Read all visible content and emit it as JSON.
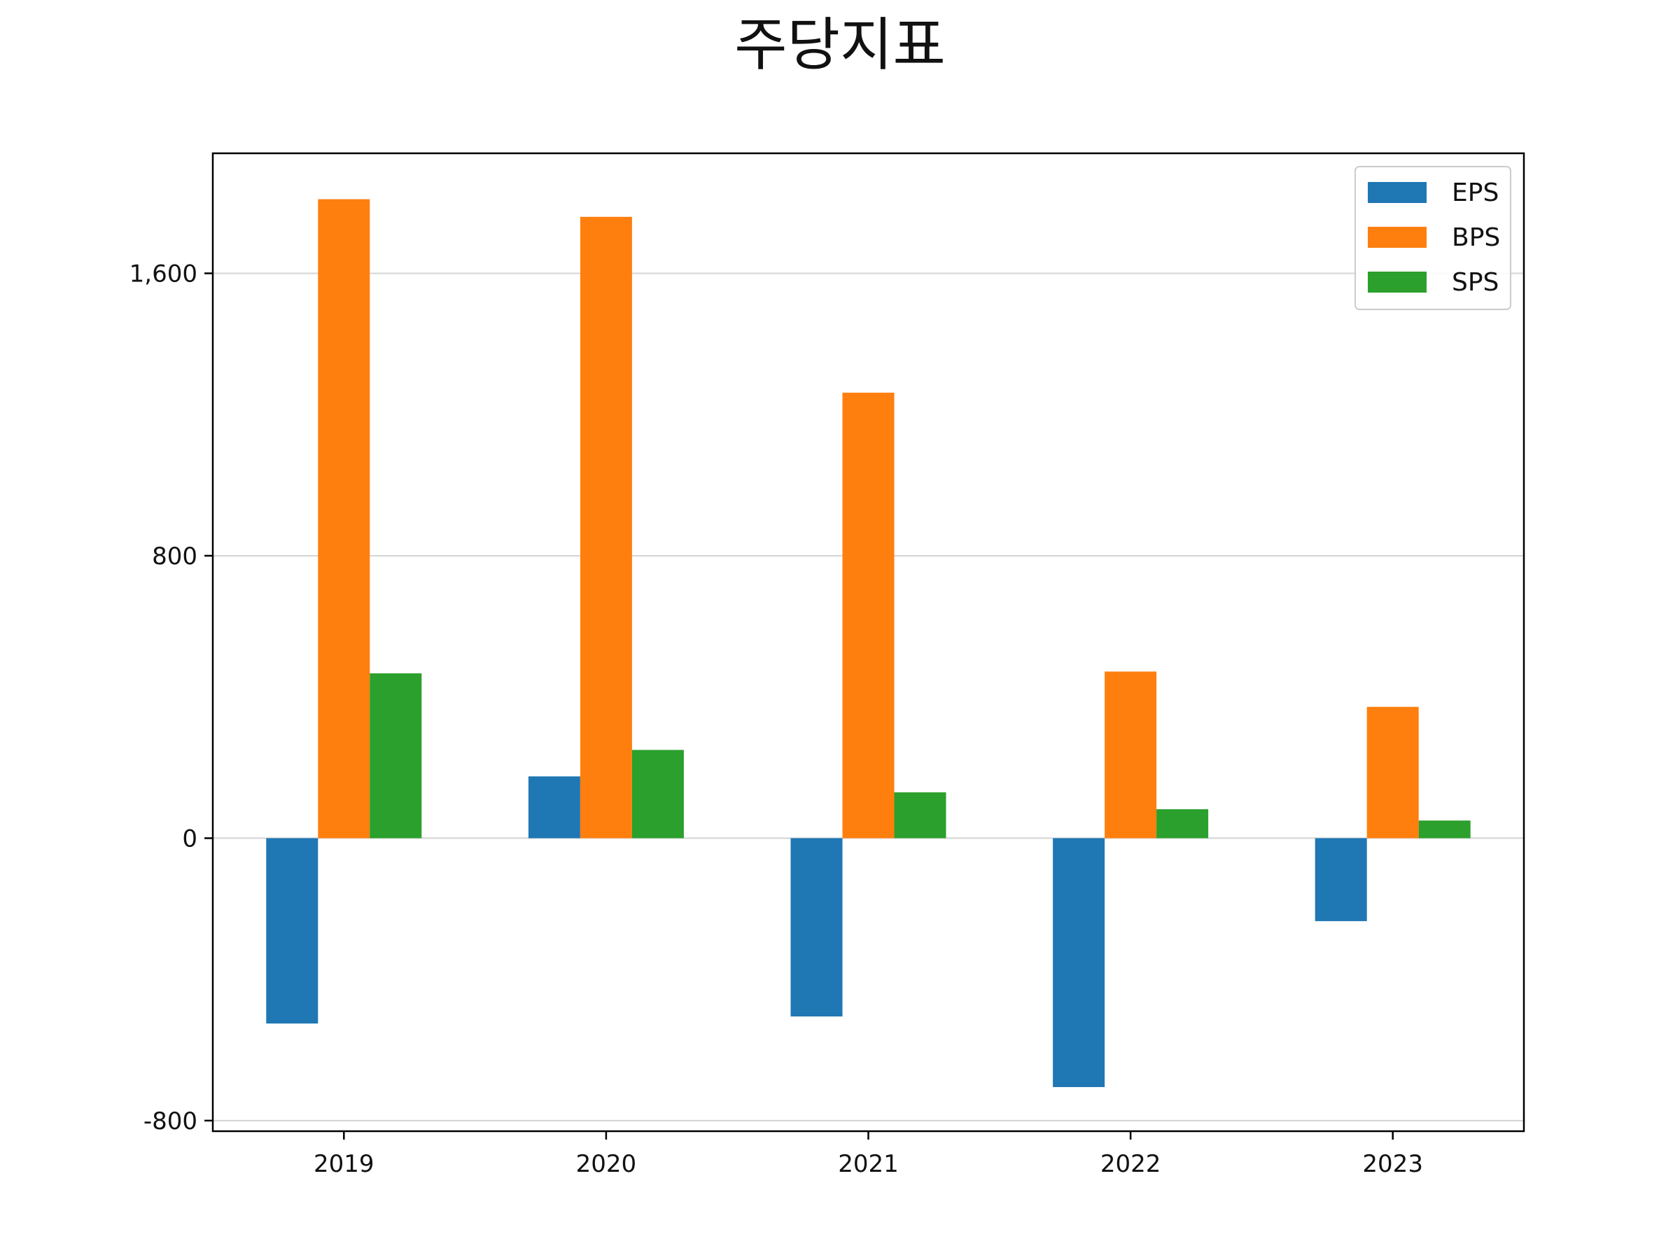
{
  "chart_data": {
    "type": "bar",
    "title": "주당지표",
    "xlabel": "",
    "ylabel": "",
    "categories": [
      "2019",
      "2020",
      "2021",
      "2022",
      "2023"
    ],
    "series": [
      {
        "name": "EPS",
        "color": "#1f77b4",
        "values": [
          -525,
          175,
          -505,
          -705,
          -235
        ]
      },
      {
        "name": "BPS",
        "color": "#ff7f0e",
        "values": [
          1810,
          1760,
          1262,
          472,
          372
        ]
      },
      {
        "name": "SPS",
        "color": "#2ca02c",
        "values": [
          467,
          250,
          130,
          82,
          50
        ]
      }
    ],
    "ylim": [
      -830,
      1940
    ],
    "yticks": [
      -800,
      0,
      800,
      1600
    ],
    "ytick_labels": [
      "-800",
      "0",
      "800",
      "1,600"
    ],
    "grid": "horizontal",
    "legend_position": "top-right"
  }
}
